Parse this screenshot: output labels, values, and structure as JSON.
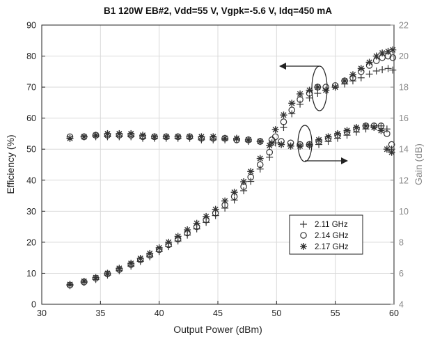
{
  "chart_data": {
    "type": "scatter",
    "title": "B1 120W EB#2, Vdd=55 V, Vgpk=-5.6 V, Idq=450 mA",
    "xlabel": "Output Power (dBm)",
    "ylabel_left": "Efficiency (%)",
    "ylabel_right": "Gain (dB)",
    "xlim": [
      30,
      60
    ],
    "ylim_left": [
      0,
      90
    ],
    "ylim_right": [
      4,
      22
    ],
    "x_ticks": [
      "30",
      "35",
      "40",
      "45",
      "50",
      "55",
      "60"
    ],
    "y_left_ticks": [
      "0",
      "10",
      "20",
      "30",
      "40",
      "50",
      "60",
      "70",
      "80",
      "90"
    ],
    "y_right_ticks": [
      "4",
      "6",
      "8",
      "10",
      "12",
      "14",
      "16",
      "18",
      "20",
      "22"
    ],
    "grid": true,
    "legend_position": "lower-right",
    "markers": [
      "+",
      "o",
      "*"
    ],
    "colors": {
      "left_axis": "#222222",
      "right_axis": "#8a8a8a",
      "grid": "#d9d9d9",
      "series": "#333333"
    },
    "series": [
      {
        "name": "2.11 GHz",
        "marker": "+",
        "efficiency": [
          [
            32.4,
            6.0
          ],
          [
            33.6,
            7.0
          ],
          [
            34.6,
            8.0
          ],
          [
            35.6,
            9.4
          ],
          [
            36.6,
            10.8
          ],
          [
            37.6,
            12.3
          ],
          [
            38.4,
            13.8
          ],
          [
            39.2,
            15.3
          ],
          [
            40.0,
            17.0
          ],
          [
            40.8,
            18.6
          ],
          [
            41.6,
            20.4
          ],
          [
            42.4,
            22.3
          ],
          [
            43.2,
            24.3
          ],
          [
            44.0,
            26.4
          ],
          [
            44.8,
            28.6
          ],
          [
            45.6,
            31.0
          ],
          [
            46.4,
            33.6
          ],
          [
            47.2,
            36.6
          ],
          [
            47.8,
            39.6
          ],
          [
            48.6,
            43.6
          ],
          [
            49.4,
            47.4
          ],
          [
            49.9,
            52.0
          ],
          [
            50.6,
            57.0
          ],
          [
            51.3,
            61.4
          ],
          [
            52.0,
            64.5
          ],
          [
            52.8,
            66.5
          ],
          [
            53.5,
            68.0
          ],
          [
            54.2,
            69.0
          ],
          [
            55.0,
            70.0
          ],
          [
            55.8,
            71.0
          ],
          [
            56.5,
            72.0
          ],
          [
            57.2,
            73.0
          ],
          [
            57.9,
            74.2
          ],
          [
            58.5,
            75.2
          ],
          [
            59.0,
            75.6
          ],
          [
            59.5,
            76.0
          ],
          [
            59.9,
            75.5
          ]
        ],
        "gain": [
          [
            32.4,
            14.7
          ],
          [
            33.6,
            14.8
          ],
          [
            34.6,
            14.8
          ],
          [
            35.6,
            14.8
          ],
          [
            36.6,
            14.8
          ],
          [
            37.6,
            14.8
          ],
          [
            38.6,
            14.7
          ],
          [
            39.6,
            14.7
          ],
          [
            40.6,
            14.7
          ],
          [
            41.6,
            14.7
          ],
          [
            42.6,
            14.7
          ],
          [
            43.6,
            14.6
          ],
          [
            44.6,
            14.6
          ],
          [
            45.6,
            14.6
          ],
          [
            46.6,
            14.6
          ],
          [
            47.6,
            14.5
          ],
          [
            48.6,
            14.5
          ],
          [
            49.6,
            14.4
          ],
          [
            50.4,
            14.3
          ],
          [
            51.2,
            14.2
          ],
          [
            52.0,
            14.2
          ],
          [
            52.8,
            14.2
          ],
          [
            53.6,
            14.3
          ],
          [
            54.4,
            14.5
          ],
          [
            55.2,
            14.7
          ],
          [
            56.0,
            14.9
          ],
          [
            56.8,
            15.1
          ],
          [
            57.6,
            15.3
          ],
          [
            58.3,
            15.5
          ],
          [
            58.9,
            15.5
          ],
          [
            59.4,
            15.3
          ],
          [
            59.8,
            14.0
          ]
        ]
      },
      {
        "name": "2.14 GHz",
        "marker": "o",
        "efficiency": [
          [
            32.4,
            6.2
          ],
          [
            33.6,
            7.2
          ],
          [
            34.6,
            8.4
          ],
          [
            35.6,
            9.8
          ],
          [
            36.6,
            11.2
          ],
          [
            37.6,
            12.8
          ],
          [
            38.4,
            14.3
          ],
          [
            39.2,
            15.8
          ],
          [
            40.0,
            17.6
          ],
          [
            40.8,
            19.2
          ],
          [
            41.6,
            21.0
          ],
          [
            42.4,
            23.0
          ],
          [
            43.2,
            25.0
          ],
          [
            44.0,
            27.2
          ],
          [
            44.8,
            29.4
          ],
          [
            45.6,
            32.0
          ],
          [
            46.4,
            34.7
          ],
          [
            47.2,
            37.9
          ],
          [
            47.8,
            41.0
          ],
          [
            48.6,
            45.0
          ],
          [
            49.4,
            49.0
          ],
          [
            49.9,
            54.0
          ],
          [
            50.6,
            58.8
          ],
          [
            51.3,
            62.6
          ],
          [
            52.0,
            66.0
          ],
          [
            52.8,
            68.0
          ],
          [
            53.5,
            70.0
          ],
          [
            54.2,
            70.0
          ],
          [
            55.0,
            70.5
          ],
          [
            55.8,
            72.0
          ],
          [
            56.5,
            73.0
          ],
          [
            57.2,
            75.0
          ],
          [
            57.9,
            77.0
          ],
          [
            58.5,
            78.5
          ],
          [
            59.0,
            79.5
          ],
          [
            59.5,
            80.0
          ],
          [
            59.9,
            79.5
          ]
        ],
        "gain": [
          [
            32.4,
            14.8
          ],
          [
            33.6,
            14.8
          ],
          [
            34.6,
            14.9
          ],
          [
            35.6,
            14.9
          ],
          [
            36.6,
            14.9
          ],
          [
            37.6,
            14.9
          ],
          [
            38.6,
            14.8
          ],
          [
            39.6,
            14.8
          ],
          [
            40.6,
            14.8
          ],
          [
            41.6,
            14.8
          ],
          [
            42.6,
            14.8
          ],
          [
            43.6,
            14.7
          ],
          [
            44.6,
            14.7
          ],
          [
            45.6,
            14.7
          ],
          [
            46.6,
            14.6
          ],
          [
            47.6,
            14.6
          ],
          [
            48.6,
            14.5
          ],
          [
            49.6,
            14.6
          ],
          [
            50.4,
            14.5
          ],
          [
            51.2,
            14.4
          ],
          [
            52.0,
            14.3
          ],
          [
            52.8,
            14.3
          ],
          [
            53.6,
            14.5
          ],
          [
            54.4,
            14.7
          ],
          [
            55.2,
            14.9
          ],
          [
            56.0,
            15.1
          ],
          [
            56.8,
            15.3
          ],
          [
            57.6,
            15.5
          ],
          [
            58.3,
            15.5
          ],
          [
            58.9,
            15.5
          ],
          [
            59.4,
            15.0
          ],
          [
            59.8,
            14.3
          ]
        ]
      },
      {
        "name": "2.17 GHz",
        "marker": "*",
        "efficiency": [
          [
            32.4,
            6.4
          ],
          [
            33.6,
            7.4
          ],
          [
            34.6,
            8.6
          ],
          [
            35.6,
            10.0
          ],
          [
            36.6,
            11.6
          ],
          [
            37.6,
            13.2
          ],
          [
            38.4,
            14.8
          ],
          [
            39.2,
            16.4
          ],
          [
            40.0,
            18.2
          ],
          [
            40.8,
            20.0
          ],
          [
            41.6,
            21.9
          ],
          [
            42.4,
            24.0
          ],
          [
            43.2,
            26.1
          ],
          [
            44.0,
            28.3
          ],
          [
            44.8,
            30.6
          ],
          [
            45.6,
            33.3
          ],
          [
            46.4,
            36.1
          ],
          [
            47.2,
            39.5
          ],
          [
            47.8,
            42.8
          ],
          [
            48.6,
            47.0
          ],
          [
            49.4,
            51.2
          ],
          [
            49.9,
            56.3
          ],
          [
            50.6,
            61.0
          ],
          [
            51.3,
            64.8
          ],
          [
            52.0,
            67.8
          ],
          [
            52.8,
            69.0
          ],
          [
            53.5,
            70.0
          ],
          [
            54.2,
            69.0
          ],
          [
            55.0,
            70.0
          ],
          [
            55.8,
            72.0
          ],
          [
            56.5,
            74.0
          ],
          [
            57.2,
            76.0
          ],
          [
            57.9,
            78.0
          ],
          [
            58.5,
            80.0
          ],
          [
            59.0,
            81.0
          ],
          [
            59.5,
            81.5
          ],
          [
            59.9,
            82.0
          ]
        ],
        "gain": [
          [
            32.4,
            14.7
          ],
          [
            33.6,
            14.8
          ],
          [
            34.6,
            14.9
          ],
          [
            35.6,
            15.0
          ],
          [
            36.6,
            15.0
          ],
          [
            37.6,
            15.0
          ],
          [
            38.6,
            14.9
          ],
          [
            39.6,
            14.8
          ],
          [
            40.6,
            14.8
          ],
          [
            41.6,
            14.8
          ],
          [
            42.6,
            14.8
          ],
          [
            43.6,
            14.8
          ],
          [
            44.6,
            14.8
          ],
          [
            45.6,
            14.7
          ],
          [
            46.6,
            14.7
          ],
          [
            47.6,
            14.6
          ],
          [
            48.6,
            14.5
          ],
          [
            49.6,
            14.4
          ],
          [
            50.4,
            14.3
          ],
          [
            51.2,
            14.2
          ],
          [
            52.0,
            14.2
          ],
          [
            52.8,
            14.3
          ],
          [
            53.6,
            14.6
          ],
          [
            54.4,
            14.8
          ],
          [
            55.2,
            15.0
          ],
          [
            56.0,
            15.2
          ],
          [
            56.8,
            15.4
          ],
          [
            57.6,
            15.5
          ],
          [
            58.3,
            15.4
          ],
          [
            58.9,
            15.2
          ],
          [
            59.4,
            14.0
          ],
          [
            59.8,
            13.8
          ]
        ]
      }
    ]
  }
}
